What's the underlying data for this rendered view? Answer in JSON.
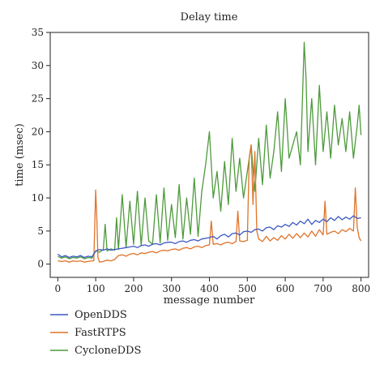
{
  "chart_data": {
    "type": "line",
    "title": "Delay time",
    "xlabel": "message number",
    "ylabel": "time (msec)",
    "xlim": [
      -20,
      820
    ],
    "ylim": [
      -2,
      35
    ],
    "xticks": [
      0,
      100,
      200,
      300,
      400,
      500,
      600,
      700,
      800
    ],
    "yticks": [
      0,
      5,
      10,
      15,
      20,
      25,
      30,
      35
    ],
    "grid": false,
    "legend_position": "bottom-left",
    "series": [
      {
        "name": "OpenDDS",
        "color": "#3c59c4",
        "x": [
          0,
          10,
          20,
          30,
          40,
          50,
          60,
          70,
          80,
          90,
          100,
          110,
          120,
          130,
          140,
          150,
          160,
          170,
          180,
          190,
          200,
          210,
          220,
          230,
          240,
          250,
          260,
          270,
          280,
          290,
          300,
          310,
          320,
          330,
          340,
          350,
          360,
          370,
          380,
          390,
          400,
          410,
          420,
          430,
          440,
          450,
          460,
          470,
          480,
          490,
          500,
          510,
          520,
          530,
          540,
          550,
          560,
          570,
          580,
          590,
          600,
          610,
          620,
          630,
          640,
          650,
          660,
          670,
          680,
          690,
          700,
          710,
          720,
          730,
          740,
          750,
          760,
          770,
          780,
          790,
          800
        ],
        "values": [
          1.5,
          1.1,
          1.3,
          1.0,
          1.2,
          1.1,
          1.3,
          1.0,
          1.2,
          1.1,
          2.0,
          2.2,
          2.1,
          2.3,
          2.1,
          2.2,
          2.3,
          2.4,
          2.5,
          2.6,
          2.7,
          2.5,
          2.8,
          2.9,
          2.7,
          3.0,
          3.1,
          2.9,
          3.2,
          3.3,
          3.3,
          3.1,
          3.4,
          3.5,
          3.3,
          3.6,
          3.7,
          3.5,
          3.8,
          3.9,
          4.0,
          4.2,
          3.8,
          4.3,
          4.5,
          4.1,
          4.6,
          4.7,
          4.4,
          4.9,
          5.0,
          4.8,
          5.2,
          5.3,
          5.0,
          5.5,
          5.6,
          5.2,
          5.8,
          5.6,
          6.0,
          5.7,
          6.3,
          5.9,
          6.5,
          6.1,
          6.8,
          6.0,
          6.6,
          6.3,
          6.8,
          6.4,
          7.0,
          6.6,
          7.2,
          6.7,
          7.1,
          6.8,
          7.3,
          6.9,
          7.0
        ]
      },
      {
        "name": "FastRTPS",
        "color": "#e07328",
        "x": [
          0,
          10,
          20,
          30,
          40,
          50,
          60,
          70,
          80,
          90,
          95,
          100,
          103,
          106,
          110,
          120,
          130,
          140,
          150,
          160,
          170,
          180,
          190,
          200,
          210,
          220,
          230,
          240,
          250,
          260,
          270,
          280,
          290,
          300,
          310,
          320,
          330,
          340,
          350,
          360,
          370,
          380,
          390,
          400,
          405,
          410,
          420,
          430,
          440,
          450,
          460,
          470,
          475,
          480,
          490,
          500,
          505,
          510,
          515,
          520,
          525,
          530,
          540,
          550,
          560,
          570,
          580,
          590,
          600,
          610,
          620,
          630,
          640,
          650,
          660,
          670,
          680,
          690,
          700,
          705,
          710,
          720,
          730,
          740,
          750,
          760,
          770,
          780,
          785,
          790,
          795,
          800
        ],
        "values": [
          0.5,
          0.4,
          0.5,
          0.3,
          0.5,
          0.4,
          0.5,
          0.3,
          0.4,
          0.5,
          0.5,
          11.2,
          7.0,
          1.0,
          0.3,
          0.4,
          0.6,
          0.5,
          0.7,
          1.3,
          1.4,
          1.2,
          1.5,
          1.6,
          1.4,
          1.7,
          1.6,
          1.8,
          1.9,
          1.7,
          2.0,
          2.1,
          2.0,
          2.2,
          2.3,
          2.1,
          2.4,
          2.5,
          2.3,
          2.6,
          2.7,
          2.5,
          2.8,
          2.9,
          6.5,
          3.0,
          3.1,
          2.9,
          3.2,
          3.3,
          3.1,
          3.4,
          8.0,
          3.5,
          3.4,
          3.6,
          16.0,
          18.0,
          9.0,
          17.0,
          5.0,
          3.8,
          3.4,
          4.2,
          3.5,
          4.0,
          3.6,
          4.3,
          3.8,
          4.5,
          3.9,
          4.6,
          4.0,
          4.7,
          4.1,
          5.0,
          4.2,
          5.2,
          4.4,
          9.5,
          4.5,
          4.8,
          5.0,
          4.6,
          5.2,
          4.9,
          5.4,
          5.0,
          11.5,
          5.5,
          4.0,
          3.5
        ]
      },
      {
        "name": "CycloneDDS",
        "color": "#4e9a3c",
        "x": [
          0,
          10,
          20,
          30,
          40,
          50,
          60,
          70,
          80,
          90,
          100,
          110,
          120,
          125,
          130,
          140,
          150,
          155,
          160,
          170,
          180,
          190,
          200,
          210,
          220,
          230,
          240,
          250,
          260,
          270,
          280,
          290,
          300,
          310,
          320,
          330,
          340,
          350,
          360,
          370,
          380,
          390,
          400,
          410,
          420,
          430,
          440,
          450,
          460,
          470,
          480,
          490,
          500,
          510,
          520,
          530,
          540,
          550,
          560,
          570,
          580,
          590,
          600,
          610,
          620,
          630,
          640,
          650,
          655,
          660,
          670,
          680,
          690,
          700,
          710,
          720,
          730,
          740,
          750,
          760,
          770,
          780,
          790,
          795,
          800
        ],
        "values": [
          1.2,
          0.9,
          1.1,
          0.8,
          1.0,
          0.9,
          1.1,
          0.8,
          1.0,
          0.9,
          2.0,
          1.8,
          2.2,
          6.0,
          2.0,
          2.3,
          2.1,
          7.0,
          2.2,
          10.5,
          2.5,
          9.5,
          3.0,
          11.0,
          2.8,
          10.0,
          3.5,
          3.0,
          10.5,
          3.2,
          11.5,
          3.6,
          9.0,
          4.0,
          12.0,
          3.8,
          10.0,
          4.5,
          13.0,
          4.2,
          11.0,
          15.0,
          20.0,
          10.0,
          14.0,
          8.0,
          15.5,
          9.0,
          19.0,
          11.0,
          16.0,
          10.0,
          14.0,
          18.0,
          11.0,
          19.0,
          12.0,
          21.0,
          13.0,
          17.0,
          23.0,
          14.0,
          25.0,
          16.0,
          18.0,
          20.0,
          15.0,
          33.5,
          28.0,
          17.0,
          25.0,
          15.0,
          27.0,
          17.0,
          23.0,
          16.0,
          24.0,
          18.0,
          22.0,
          17.0,
          23.0,
          16.0,
          21.0,
          24.0,
          19.5
        ]
      }
    ]
  }
}
